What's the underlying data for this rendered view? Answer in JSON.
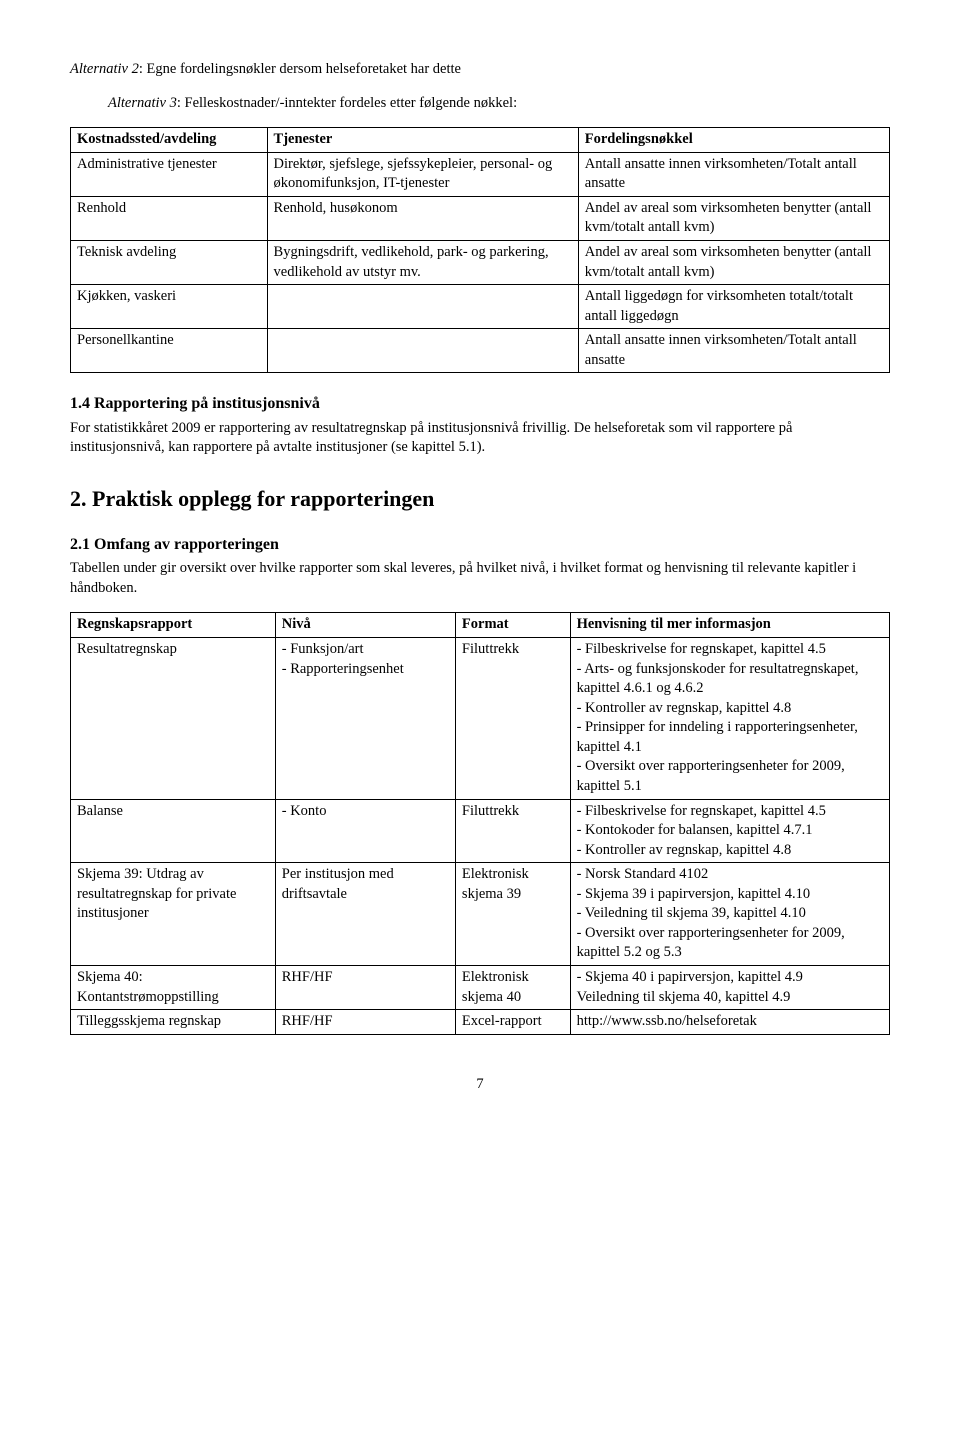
{
  "alt2_prefix": "Alternativ 2",
  "alt2_text": ": Egne fordelingsnøkler dersom helseforetaket har dette",
  "alt3_prefix": "Alternativ 3",
  "alt3_text": ": Felleskostnader/-inntekter fordeles etter følgende nøkkel:",
  "table1": {
    "headers": [
      "Kostnadssted/avdeling",
      "Tjenester",
      "Fordelingsnøkkel"
    ],
    "rows": [
      [
        "Administrative tjenester",
        "Direktør, sjefslege, sjefssykepleier, personal- og økonomifunksjon, IT-tjenester",
        "Antall ansatte innen virksomheten/Totalt antall ansatte"
      ],
      [
        "Renhold",
        "Renhold, husøkonom",
        "Andel av areal som virksomheten benytter (antall kvm/totalt antall kvm)"
      ],
      [
        "Teknisk avdeling",
        "Bygningsdrift, vedlikehold, park- og parkering, vedlikehold av utstyr mv.",
        "Andel av areal som virksomheten benytter (antall kvm/totalt antall kvm)"
      ],
      [
        "Kjøkken, vaskeri",
        "",
        "Antall liggedøgn for virksomheten totalt/totalt antall liggedøgn"
      ],
      [
        "Personellkantine",
        "",
        "Antall ansatte innen virksomheten/Totalt antall ansatte"
      ]
    ]
  },
  "h_1_4": "1.4 Rapportering på institusjonsnivå",
  "p_1_4": "For statistikkåret 2009 er rapportering av resultatregnskap på institusjonsnivå frivillig. De helseforetak som vil rapportere på institusjonsnivå, kan rapportere på avtalte institusjoner (se kapittel 5.1).",
  "h_2": "2. Praktisk opplegg for rapporteringen",
  "h_2_1": "2.1 Omfang av rapporteringen",
  "p_2_1": "Tabellen under gir oversikt over hvilke rapporter som skal leveres, på hvilket nivå, i hvilket format og henvisning til relevante kapitler i håndboken.",
  "table2": {
    "headers": [
      "Regnskapsrapport",
      "Nivå",
      "Format",
      "Henvisning til mer informasjon"
    ],
    "rows": [
      [
        "Resultatregnskap",
        "- Funksjon/art\n- Rapporteringsenhet",
        "Filuttrekk",
        "- Filbeskrivelse for regnskapet, kapittel 4.5\n- Arts- og funksjonskoder for resultatregnskapet, kapittel 4.6.1 og 4.6.2\n- Kontroller av regnskap, kapittel 4.8\n- Prinsipper for inndeling i rapporteringsenheter, kapittel 4.1\n- Oversikt over rapporteringsenheter for 2009, kapittel 5.1"
      ],
      [
        "Balanse",
        "- Konto",
        "Filuttrekk",
        "- Filbeskrivelse for regnskapet, kapittel 4.5\n- Kontokoder for balansen, kapittel 4.7.1\n- Kontroller av regnskap, kapittel 4.8"
      ],
      [
        "Skjema 39: Utdrag av resultatregnskap for private institusjoner",
        "Per institusjon med driftsavtale",
        "Elektronisk skjema 39",
        "- Norsk Standard 4102\n- Skjema 39 i papirversjon, kapittel 4.10\n- Veiledning til skjema 39, kapittel 4.10\n- Oversikt over rapporteringsenheter for 2009, kapittel 5.2 og 5.3"
      ],
      [
        "Skjema 40: Kontantstrømoppstilling",
        "RHF/HF",
        "Elektronisk skjema 40",
        "- Skjema 40 i papirversjon, kapittel 4.9\nVeiledning til skjema 40, kapittel 4.9"
      ],
      [
        "Tilleggsskjema regnskap",
        "RHF/HF",
        "Excel-rapport",
        "http://www.ssb.no/helseforetak"
      ]
    ]
  },
  "page_number": "7"
}
